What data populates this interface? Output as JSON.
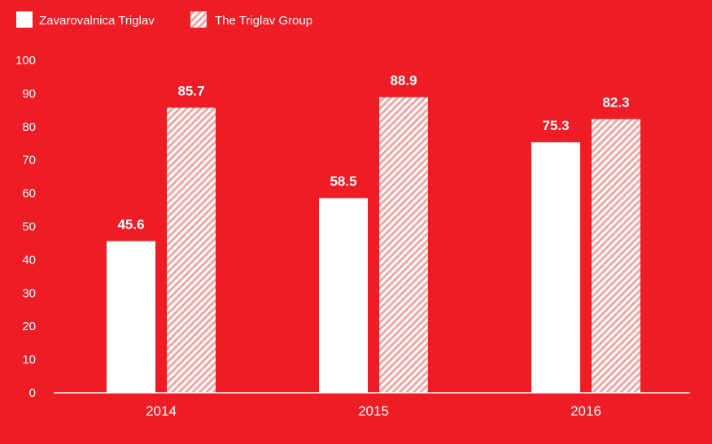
{
  "chart_data": {
    "type": "bar",
    "categories": [
      "2014",
      "2015",
      "2016"
    ],
    "series": [
      {
        "name": "Zavarovalnica Triglav",
        "values": [
          45.6,
          58.5,
          75.3
        ],
        "color": "#ffffff",
        "fill_style": "solid"
      },
      {
        "name": "The Triglav Group",
        "values": [
          85.7,
          88.9,
          82.3
        ],
        "color": "#ffffff",
        "fill_style": "hatched"
      }
    ],
    "value_labels": [
      [
        "45.6",
        "58.5",
        "75.3"
      ],
      [
        "85.7",
        "88.9",
        "82.3"
      ]
    ],
    "yticks": [
      "0",
      "10",
      "20",
      "30",
      "40",
      "50",
      "60",
      "70",
      "80",
      "90",
      "100"
    ],
    "ylim": [
      0,
      100
    ],
    "legend_position": "top-left",
    "grid": false,
    "background_color": "#ee1c25"
  }
}
